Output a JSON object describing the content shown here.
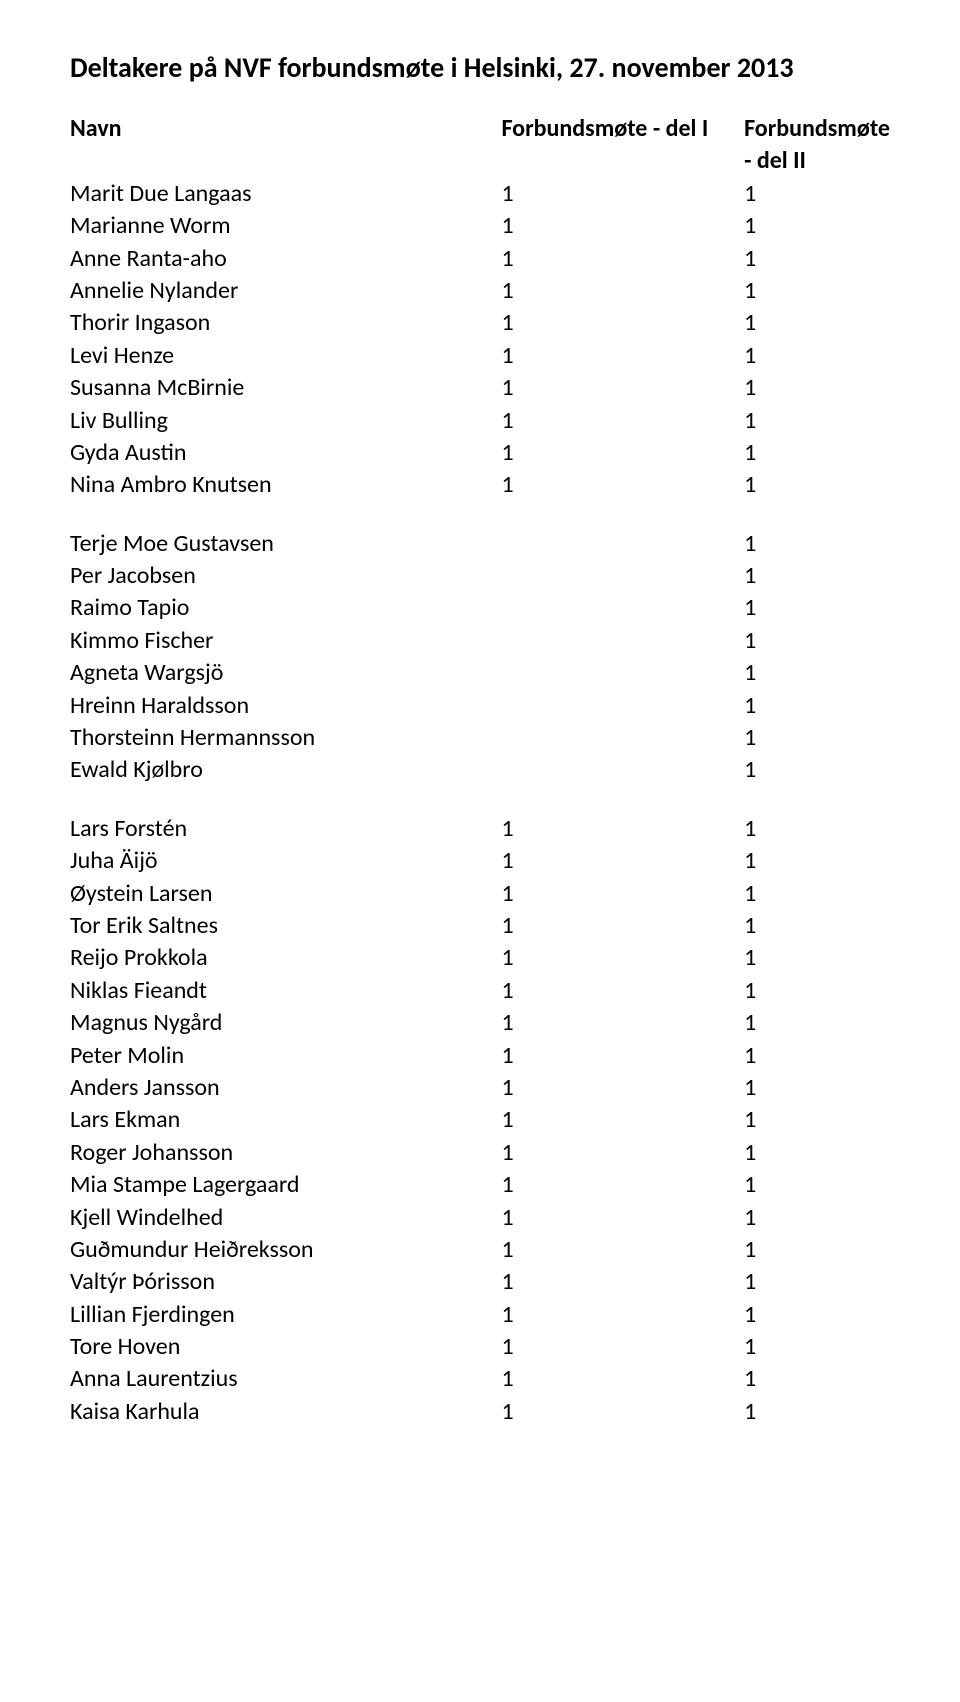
{
  "title": "Deltakere på NVF forbundsmøte i Helsinki, 27. november 2013",
  "headers": {
    "name": "Navn",
    "col1": "Forbundsmøte - del I",
    "col2": "Forbundsmøte - del II"
  },
  "sections": [
    {
      "rows": [
        {
          "name": "Marit Due Langaas",
          "d1": "1",
          "d2": "1"
        },
        {
          "name": "Marianne Worm",
          "d1": "1",
          "d2": "1"
        },
        {
          "name": "Anne Ranta-aho",
          "d1": "1",
          "d2": "1"
        },
        {
          "name": "Annelie Nylander",
          "d1": "1",
          "d2": "1"
        },
        {
          "name": "Thorir Ingason",
          "d1": "1",
          "d2": "1"
        },
        {
          "name": "Levi Henze",
          "d1": "1",
          "d2": "1"
        },
        {
          "name": "Susanna McBirnie",
          "d1": "1",
          "d2": "1"
        },
        {
          "name": "Liv Bulling",
          "d1": "1",
          "d2": "1"
        },
        {
          "name": "Gyda Austin",
          "d1": "1",
          "d2": "1"
        },
        {
          "name": "Nina Ambro Knutsen",
          "d1": "1",
          "d2": "1"
        }
      ]
    },
    {
      "rows": [
        {
          "name": "Terje Moe Gustavsen",
          "d1": "",
          "d2": "1"
        },
        {
          "name": "Per Jacobsen",
          "d1": "",
          "d2": "1"
        },
        {
          "name": "Raimo Tapio",
          "d1": "",
          "d2": "1"
        },
        {
          "name": "Kimmo Fischer",
          "d1": "",
          "d2": "1"
        },
        {
          "name": "Agneta Wargsjö",
          "d1": "",
          "d2": "1"
        },
        {
          "name": "Hreinn Haraldsson",
          "d1": "",
          "d2": "1"
        },
        {
          "name": "Thorsteinn Hermannsson",
          "d1": "",
          "d2": "1"
        },
        {
          "name": "Ewald Kjølbro",
          "d1": "",
          "d2": "1"
        }
      ]
    },
    {
      "rows": [
        {
          "name": "Lars Forstén",
          "d1": "1",
          "d2": "1"
        },
        {
          "name": "Juha Äijö",
          "d1": "1",
          "d2": "1"
        },
        {
          "name": "Øystein Larsen",
          "d1": "1",
          "d2": "1"
        },
        {
          "name": "Tor Erik Saltnes",
          "d1": "1",
          "d2": "1"
        },
        {
          "name": "Reijo Prokkola",
          "d1": "1",
          "d2": "1"
        },
        {
          "name": "Niklas Fieandt",
          "d1": "1",
          "d2": "1"
        },
        {
          "name": "Magnus Nygård",
          "d1": "1",
          "d2": "1"
        },
        {
          "name": "Peter Molin",
          "d1": "1",
          "d2": "1"
        },
        {
          "name": "Anders Jansson",
          "d1": "1",
          "d2": "1"
        },
        {
          "name": "Lars Ekman",
          "d1": "1",
          "d2": "1"
        },
        {
          "name": "Roger Johansson",
          "d1": "1",
          "d2": "1"
        },
        {
          "name": "Mia Stampe Lagergaard",
          "d1": "1",
          "d2": "1"
        },
        {
          "name": "Kjell Windelhed",
          "d1": "1",
          "d2": "1"
        },
        {
          "name": "Guðmundur Heiðreksson",
          "d1": "1",
          "d2": "1"
        },
        {
          "name": "Valtýr Þórisson",
          "d1": "1",
          "d2": "1"
        },
        {
          "name": "Lillian Fjerdingen",
          "d1": "1",
          "d2": "1"
        },
        {
          "name": "Tore Hoven",
          "d1": "1",
          "d2": "1"
        },
        {
          "name": "Anna Laurentzius",
          "d1": "1",
          "d2": "1"
        },
        {
          "name": "Kaisa Karhula",
          "d1": "1",
          "d2": "1"
        }
      ]
    }
  ]
}
